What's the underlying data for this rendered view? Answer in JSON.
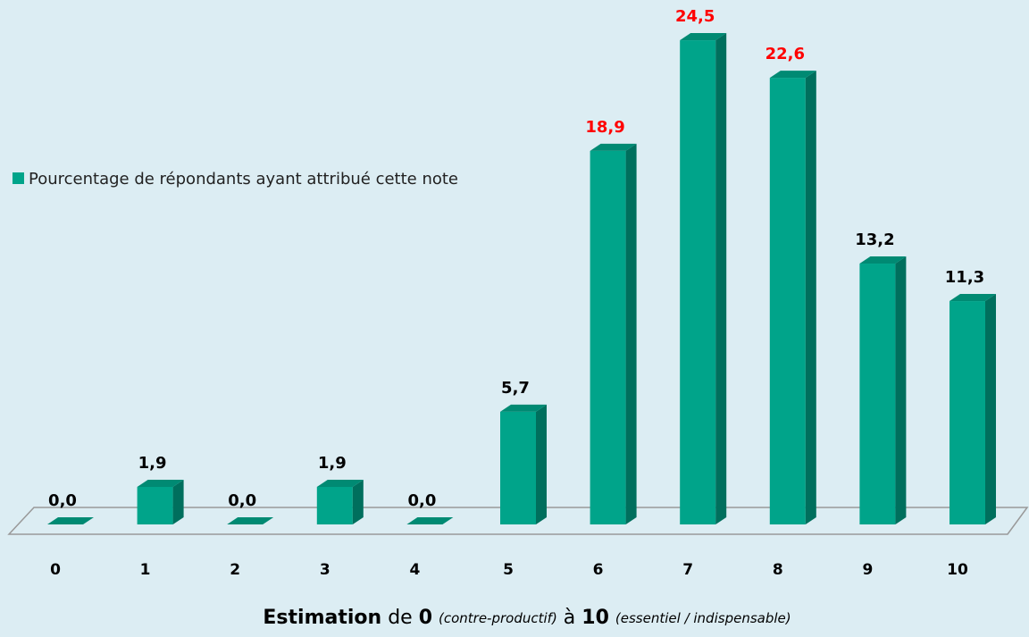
{
  "chart_data": {
    "type": "bar3d",
    "categories": [
      "0",
      "1",
      "2",
      "3",
      "4",
      "5",
      "6",
      "7",
      "8",
      "9",
      "10"
    ],
    "series": [
      {
        "name": "Pourcentage de répondants ayant attribué cette note",
        "color": "#00a48a",
        "values": [
          0,
          1.9,
          0,
          1.9,
          0,
          5.7,
          18.9,
          24.5,
          22.6,
          13.2,
          11.3
        ],
        "value_labels": [
          "0,0",
          "1,9",
          "0,0",
          "1,9",
          "0,0",
          "5,7",
          "18,9",
          "24,5",
          "22,6",
          "13,2",
          "11,3"
        ],
        "value_label_colors": [
          "#000000",
          "#000000",
          "#000000",
          "#000000",
          "#000000",
          "#000000",
          "#ff0000",
          "#ff0000",
          "#ff0000",
          "#000000",
          "#000000"
        ]
      }
    ],
    "xlabel": [
      "Estimation",
      "de",
      "0",
      "(contre-productif)",
      "à",
      "10",
      "(essentiel / indispensable)"
    ],
    "ylim": [
      0,
      25
    ],
    "legend": "left"
  }
}
